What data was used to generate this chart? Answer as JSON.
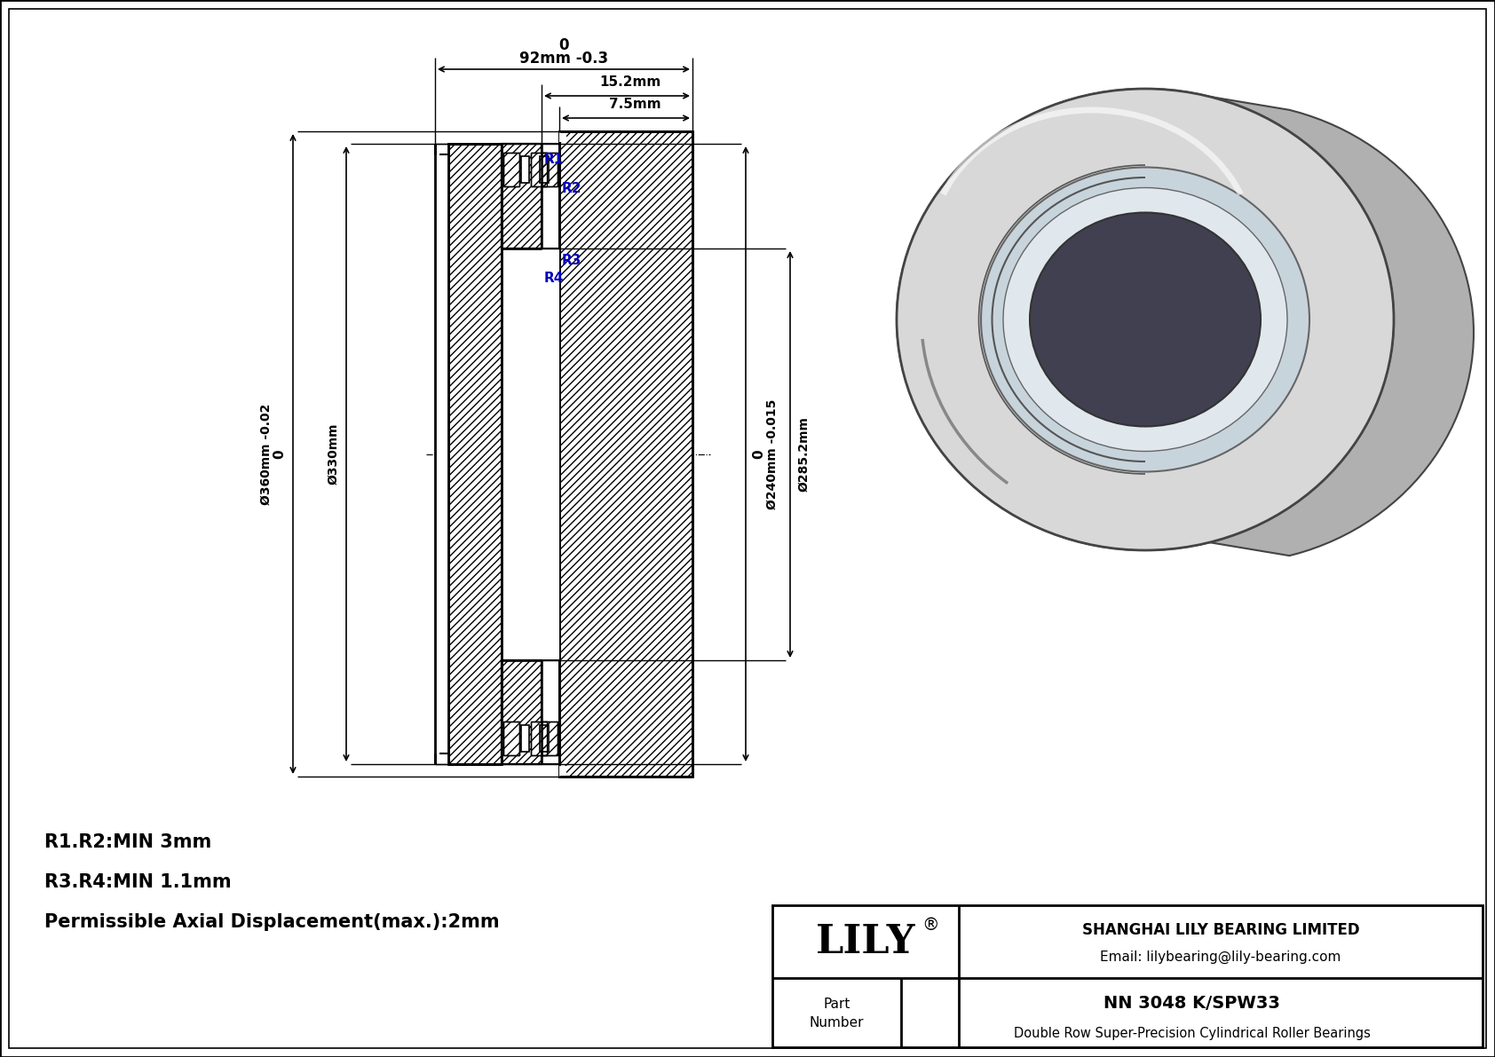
{
  "title": "NN 3048 K/SPW33",
  "subtitle": "Double Row Super-Precision Cylindrical Roller Bearings",
  "company": "SHANGHAI LILY BEARING LIMITED",
  "email": "Email: lilybearing@lily-bearing.com",
  "logo_text": "LILY",
  "logo_reg": "®",
  "dim_width_label": "0\n92mm -0.3",
  "dim_15_2": "15.2mm",
  "dim_7_5": "7.5mm",
  "dim_od1_label": "0\nØ360mm -0.02",
  "dim_od2_label": "Ø330mm",
  "dim_id1_label": "0\nØ240mm -0.015",
  "dim_id2_label": "Ø285.2mm",
  "note_r1r2": "R1.R2:MIN 3mm",
  "note_r3r4": "R3.R4:MIN 1.1mm",
  "note_axial": "Permissible Axial Displacement(max.):2mm",
  "blue_color": "#0000bb",
  "black": "#000000",
  "white": "#ffffff",
  "bg": "#f2f2f2"
}
